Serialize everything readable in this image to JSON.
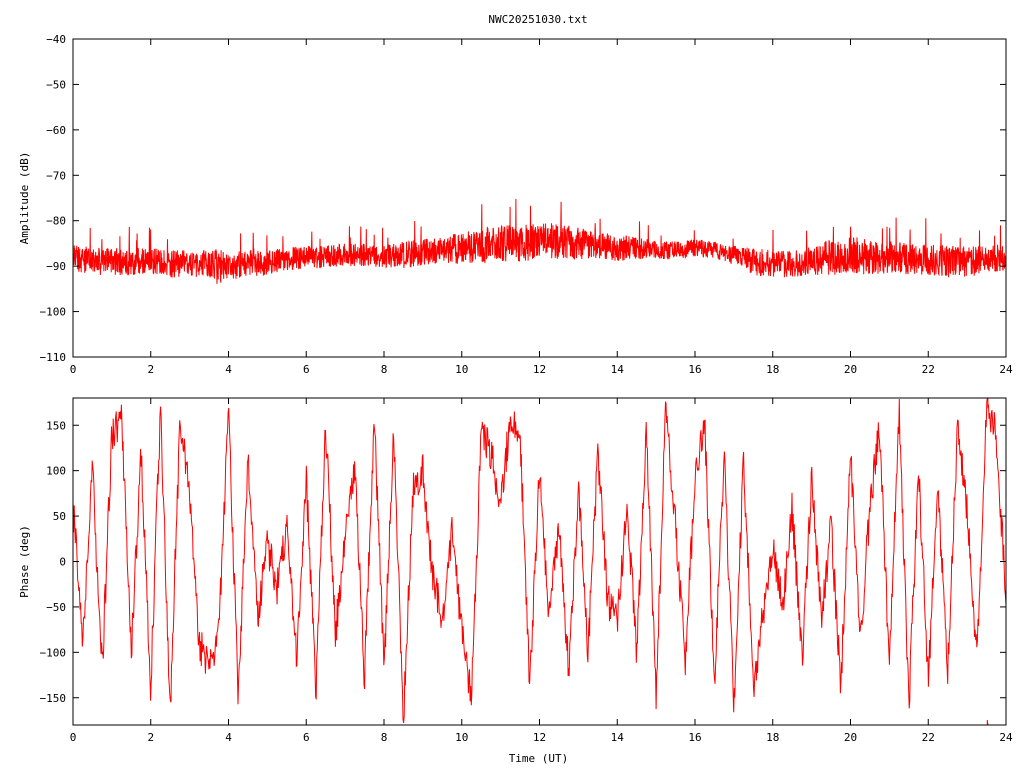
{
  "title": "NWC20251030.txt",
  "colors": {
    "trace": "#ff0000",
    "axis": "#000000",
    "background": "#ffffff"
  },
  "chart_data": [
    {
      "type": "line",
      "title": "NWC20251030.txt",
      "xlabel": "",
      "ylabel": "Amplitude (dB)",
      "xlim": [
        0,
        24
      ],
      "ylim": [
        -110,
        -40
      ],
      "x_ticks": [
        0,
        2,
        4,
        6,
        8,
        10,
        12,
        14,
        16,
        18,
        20,
        22,
        24
      ],
      "x_tick_labels": [
        "0",
        "2",
        "4",
        "6",
        "8",
        "10",
        "12",
        "14",
        "16",
        "18",
        "20",
        "22",
        "24"
      ],
      "y_ticks": [
        -110,
        -100,
        -90,
        -80,
        -70,
        -60,
        -50,
        -40
      ],
      "y_tick_labels": [
        "−110",
        "−100",
        "−90",
        "−80",
        "−70",
        "−60",
        "−50",
        "−40"
      ],
      "grid": false,
      "legend": "none",
      "series": [
        {
          "color": "#ff0000",
          "trace": "dense noisy band",
          "x": [
            0,
            0.5,
            1,
            1.5,
            2,
            2.5,
            3,
            3.5,
            3.7,
            4,
            4.5,
            5,
            5.5,
            6,
            6.5,
            7,
            7.5,
            8,
            8.5,
            9,
            9.5,
            10,
            10.5,
            11,
            11.5,
            12,
            12.5,
            13,
            13.5,
            14,
            14.5,
            15,
            15.5,
            16,
            16.5,
            17,
            17.5,
            18,
            18.5,
            19,
            19.5,
            20,
            20.5,
            21,
            21.5,
            22,
            22.5,
            23,
            23.5,
            24
          ],
          "y": [
            -88,
            -89,
            -89,
            -89,
            -89,
            -89.5,
            -89.5,
            -89.5,
            -90,
            -90,
            -89.5,
            -89,
            -88.5,
            -88,
            -88,
            -87.5,
            -87.5,
            -88,
            -87.5,
            -87,
            -86.5,
            -86,
            -85.5,
            -85,
            -85,
            -84.5,
            -84.5,
            -85,
            -85.5,
            -86,
            -86,
            -86.5,
            -86.5,
            -86,
            -86.5,
            -87.5,
            -89,
            -89.5,
            -89.5,
            -89,
            -88,
            -87.5,
            -88,
            -88,
            -88.5,
            -88.5,
            -89,
            -89,
            -88.5,
            -88
          ],
          "spread_db": [
            3,
            3,
            3,
            3,
            3,
            3,
            3,
            3,
            4,
            3,
            3,
            3,
            2.5,
            2.5,
            2.5,
            2.5,
            2.5,
            2.5,
            3,
            3,
            3,
            3.5,
            4,
            4,
            4,
            4,
            4,
            3.5,
            3,
            3,
            2.5,
            2,
            2,
            2,
            2,
            2,
            3,
            3,
            3,
            3.5,
            4,
            4,
            4,
            3.5,
            3.5,
            3.5,
            3.5,
            3.5,
            3,
            3
          ]
        }
      ]
    },
    {
      "type": "line",
      "title": "",
      "xlabel": "Time (UT)",
      "ylabel": "Phase (deg)",
      "xlim": [
        0,
        24
      ],
      "ylim": [
        -180,
        180
      ],
      "x_ticks": [
        0,
        2,
        4,
        6,
        8,
        10,
        12,
        14,
        16,
        18,
        20,
        22,
        24
      ],
      "x_tick_labels": [
        "0",
        "2",
        "4",
        "6",
        "8",
        "10",
        "12",
        "14",
        "16",
        "18",
        "20",
        "22",
        "24"
      ],
      "y_ticks": [
        -150,
        -100,
        -50,
        0,
        50,
        100,
        150
      ],
      "y_tick_labels": [
        "−150",
        "−100",
        "−50",
        "0",
        "50",
        "100",
        "150"
      ],
      "grid": false,
      "legend": "none",
      "series": [
        {
          "color": "#ff0000",
          "trace": "wrapping phase",
          "x": [
            0,
            0.25,
            0.5,
            0.75,
            1,
            1.25,
            1.5,
            1.75,
            2,
            2.25,
            2.5,
            2.75,
            3,
            3.25,
            3.5,
            3.75,
            4,
            4.25,
            4.5,
            4.75,
            5,
            5.25,
            5.5,
            5.75,
            6,
            6.25,
            6.5,
            6.75,
            7,
            7.25,
            7.5,
            7.75,
            8,
            8.25,
            8.5,
            8.75,
            9,
            9.25,
            9.5,
            9.75,
            10,
            10.25,
            10.5,
            10.75,
            11,
            11.25,
            11.5,
            11.75,
            12,
            12.25,
            12.5,
            12.75,
            13,
            13.25,
            13.5,
            13.75,
            14,
            14.25,
            14.5,
            14.75,
            15,
            15.25,
            15.5,
            15.75,
            16,
            16.25,
            16.5,
            16.75,
            17,
            17.25,
            17.5,
            17.75,
            18,
            18.25,
            18.5,
            18.75,
            19,
            19.25,
            19.5,
            19.75,
            20,
            20.25,
            20.5,
            20.75,
            21,
            21.25,
            21.5,
            21.75,
            22,
            22.25,
            22.5,
            22.75,
            23,
            23.25,
            23.5,
            23.75,
            24
          ],
          "y": [
            60,
            -80,
            100,
            -120,
            140,
            160,
            -100,
            120,
            -140,
            170,
            -160,
            150,
            80,
            -90,
            -120,
            -80,
            170,
            -150,
            120,
            -60,
            20,
            -30,
            40,
            -110,
            90,
            -140,
            150,
            -80,
            30,
            100,
            -130,
            160,
            -120,
            140,
            -170,
            80,
            100,
            -20,
            -60,
            30,
            -80,
            -150,
            140,
            120,
            60,
            160,
            140,
            -140,
            100,
            -60,
            40,
            -120,
            80,
            -100,
            120,
            -40,
            -70,
            60,
            -100,
            140,
            -150,
            170,
            40,
            -110,
            90,
            150,
            -130,
            120,
            -160,
            110,
            -140,
            -60,
            20,
            -50,
            60,
            -110,
            90,
            -70,
            40,
            -140,
            120,
            -90,
            60,
            150,
            -120,
            170,
            -160,
            100,
            -130,
            80,
            -120,
            150,
            60,
            -110,
            170,
            140,
            -40
          ]
        }
      ]
    }
  ]
}
